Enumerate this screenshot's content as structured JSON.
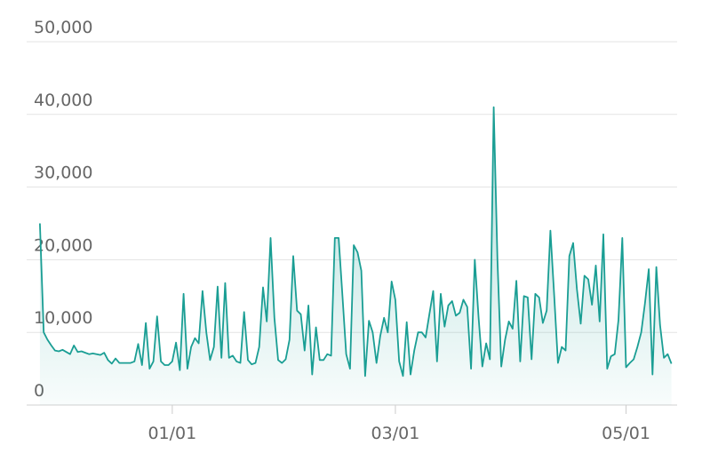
{
  "chart_data": {
    "type": "area",
    "x": [
      0,
      1,
      2,
      3,
      4,
      5,
      6,
      7,
      8,
      9,
      10,
      11,
      12,
      13,
      14,
      15,
      16,
      17,
      18,
      19,
      20,
      21,
      22,
      23,
      24,
      25,
      26,
      27,
      28,
      29,
      30,
      31,
      32,
      33,
      34,
      35,
      36,
      37,
      38,
      39,
      40,
      41,
      42,
      43,
      44,
      45,
      46,
      47,
      48,
      49,
      50,
      51,
      52,
      53,
      54,
      55,
      56,
      57,
      58,
      59,
      60,
      61,
      62,
      63,
      64,
      65,
      66,
      67,
      68,
      69,
      70,
      71,
      72,
      73,
      74,
      75,
      76,
      77,
      78,
      79,
      80,
      81,
      82,
      83,
      84,
      85,
      86,
      87,
      88,
      89,
      90,
      91,
      92,
      93,
      94,
      95,
      96,
      97,
      98,
      99,
      100,
      101,
      102,
      103,
      104,
      105,
      106,
      107,
      108,
      109,
      110,
      111,
      112,
      113,
      114,
      115,
      116,
      117,
      118,
      119,
      120,
      121,
      122,
      123,
      124,
      125,
      126,
      127,
      128,
      129,
      130,
      131,
      132,
      133,
      134,
      135,
      136,
      137,
      138,
      139,
      140,
      141,
      142,
      143,
      144,
      145,
      146,
      147,
      148,
      149,
      150,
      151,
      152,
      153,
      154,
      155,
      156,
      157,
      158,
      159,
      160,
      161,
      162,
      163,
      164,
      165,
      166,
      167
    ],
    "values": [
      25000,
      10000,
      9000,
      8200,
      7500,
      7400,
      7600,
      7300,
      7000,
      8200,
      7300,
      7400,
      7200,
      7000,
      7100,
      7000,
      6900,
      7200,
      6200,
      5700,
      6400,
      5800,
      5800,
      5800,
      5800,
      6000,
      8400,
      5500,
      11300,
      5000,
      6000,
      12200,
      6000,
      5500,
      5500,
      6000,
      8600,
      4800,
      15300,
      5000,
      8000,
      9200,
      8500,
      15700,
      10000,
      6200,
      8000,
      16300,
      6500,
      16800,
      6500,
      6800,
      6000,
      5800,
      12800,
      6200,
      5600,
      5800,
      8000,
      16200,
      11500,
      23000,
      12000,
      6200,
      5800,
      6300,
      9000,
      20500,
      13000,
      12500,
      7500,
      13700,
      4200,
      10700,
      6200,
      6200,
      7000,
      6800,
      23000,
      23000,
      15000,
      7000,
      5000,
      22000,
      21000,
      18500,
      4000,
      11600,
      10000,
      5800,
      9500,
      12000,
      10000,
      17000,
      14500,
      6000,
      4000,
      11400,
      4200,
      7500,
      10000,
      10000,
      9300,
      12500,
      15700,
      6000,
      15300,
      10800,
      13700,
      14300,
      12300,
      12700,
      14500,
      13500,
      5000,
      20000,
      12000,
      5300,
      8500,
      6300,
      41000,
      20000,
      5300,
      9000,
      11500,
      10500,
      17100,
      6000,
      15000,
      14800,
      6300,
      15300,
      14800,
      11300,
      13000,
      24000,
      15000,
      5800,
      8000,
      7500,
      20500,
      22300,
      16000,
      11200,
      17800,
      17300,
      13800,
      19200,
      11500,
      23500,
      5000,
      6700,
      7000,
      11700,
      23000,
      5200,
      5800,
      6300,
      8000,
      10000,
      14000,
      18700,
      4200,
      19000,
      11000,
      6500,
      7000,
      5700
    ],
    "color": "#1a9e94",
    "xlim": [
      -3.5,
      168.5
    ],
    "xticks": [
      {
        "value": 35,
        "label": "01/01"
      },
      {
        "value": 94,
        "label": "03/01"
      },
      {
        "value": 155,
        "label": "05/01"
      }
    ],
    "ylim": [
      0,
      50000
    ],
    "yticks": [
      0,
      {
        "value": 10000,
        "label": "10,000"
      },
      {
        "value": 20000,
        "label": "20,000"
      },
      {
        "value": 30000,
        "label": "30,000"
      },
      {
        "value": 40000,
        "label": "40,000"
      },
      {
        "value": 50000,
        "label": "50,000"
      }
    ],
    "grid": true
  }
}
